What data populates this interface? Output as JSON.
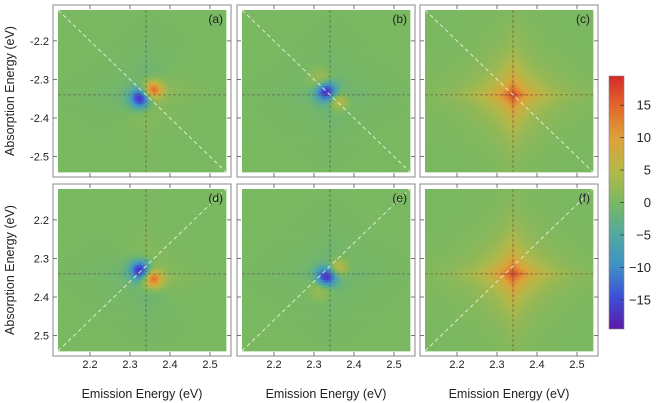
{
  "chart_data": {
    "type": "heatmap",
    "plot_style": "filled contour maps with contour lines",
    "x_axis_label": "Emission Energy (eV)",
    "y_axis_label": "Absorption Energy (eV)",
    "x_ticks": [
      "2.2",
      "2.3",
      "2.4",
      "2.5"
    ],
    "x_tick_values": [
      2.2,
      2.3,
      2.4,
      2.5
    ],
    "x_range": [
      2.12,
      2.54
    ],
    "top_row": {
      "y_ticks": [
        "-2.2",
        "-2.3",
        "-2.4",
        "-2.5"
      ],
      "y_tick_values": [
        -2.2,
        -2.3,
        -2.4,
        -2.5
      ],
      "y_range": [
        -2.12,
        -2.54
      ]
    },
    "bottom_row": {
      "y_ticks": [
        "2.5",
        "2.4",
        "2.3",
        "2.2"
      ],
      "y_tick_values": [
        2.5,
        2.4,
        2.3,
        2.2
      ],
      "y_range": [
        2.12,
        2.54
      ]
    },
    "panels": [
      {
        "label": "(a)",
        "row": 0,
        "col": 0
      },
      {
        "label": "(b)",
        "row": 0,
        "col": 1
      },
      {
        "label": "(c)",
        "row": 0,
        "col": 2
      },
      {
        "label": "(d)",
        "row": 1,
        "col": 0
      },
      {
        "label": "(e)",
        "row": 1,
        "col": 1
      },
      {
        "label": "(f)",
        "row": 1,
        "col": 2
      }
    ],
    "center": {
      "emission": 2.34,
      "absorption": 2.34
    },
    "colorbar": {
      "ticks": [
        "15",
        "10",
        "5",
        "0",
        "−5",
        "−10",
        "−15"
      ],
      "tick_values": [
        15,
        10,
        5,
        0,
        -5,
        -10,
        -15
      ],
      "range": [
        -19.5,
        19.5
      ],
      "colors": [
        "#5b1aa8",
        "#3d4fd6",
        "#3f91c4",
        "#52a9a0",
        "#7ab861",
        "#b3b849",
        "#dda33a",
        "#e36a2c",
        "#d52a28"
      ]
    }
  }
}
